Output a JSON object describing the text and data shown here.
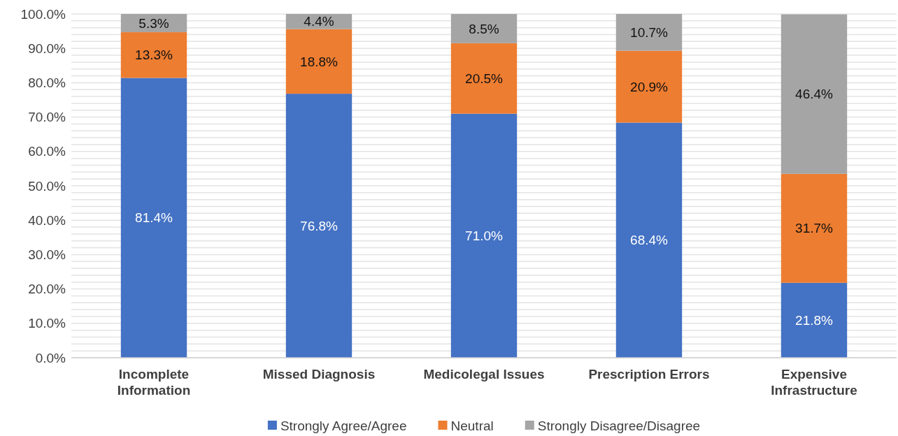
{
  "chart_data": {
    "type": "bar",
    "stacked": true,
    "categories": [
      "Incomplete Information",
      "Missed Diagnosis",
      "Medicolegal Issues",
      "Prescription Errors",
      "Expensive Infrastructure"
    ],
    "series": [
      {
        "name": "Strongly Agree/Agree",
        "color": "#4472c4",
        "values": [
          81.4,
          76.8,
          71.0,
          68.4,
          21.8
        ],
        "value_labels": [
          "81.4%",
          "76.8%",
          "71.0%",
          "68.4%",
          "21.8%"
        ]
      },
      {
        "name": "Neutral",
        "color": "#ed7d31",
        "values": [
          13.3,
          18.8,
          20.5,
          20.9,
          31.7
        ],
        "value_labels": [
          "13.3%",
          "18.8%",
          "20.5%",
          "20.9%",
          "31.7%"
        ]
      },
      {
        "name": "Strongly Disagree/Disagree",
        "color": "#a5a5a5",
        "values": [
          5.3,
          4.4,
          8.5,
          10.7,
          46.4
        ],
        "value_labels": [
          "5.3%",
          "4.4%",
          "8.5%",
          "10.7%",
          "46.4%"
        ]
      }
    ],
    "ylim": [
      0,
      100
    ],
    "yticks": [
      {
        "value": 0,
        "label": "0.0%"
      },
      {
        "value": 2,
        "label": null
      },
      {
        "value": 4,
        "label": null
      },
      {
        "value": 6,
        "label": null
      },
      {
        "value": 8,
        "label": null
      },
      {
        "value": 10,
        "label": "10.0%"
      },
      {
        "value": 12,
        "label": null
      },
      {
        "value": 14,
        "label": null
      },
      {
        "value": 16,
        "label": null
      },
      {
        "value": 18,
        "label": null
      },
      {
        "value": 20,
        "label": "20.0%"
      },
      {
        "value": 22,
        "label": null
      },
      {
        "value": 24,
        "label": null
      },
      {
        "value": 26,
        "label": null
      },
      {
        "value": 28,
        "label": null
      },
      {
        "value": 30,
        "label": "30.0%"
      },
      {
        "value": 32,
        "label": null
      },
      {
        "value": 34,
        "label": null
      },
      {
        "value": 36,
        "label": null
      },
      {
        "value": 38,
        "label": null
      },
      {
        "value": 40,
        "label": "40.0%"
      },
      {
        "value": 42,
        "label": null
      },
      {
        "value": 44,
        "label": null
      },
      {
        "value": 46,
        "label": null
      },
      {
        "value": 48,
        "label": null
      },
      {
        "value": 50,
        "label": "50.0%"
      },
      {
        "value": 52,
        "label": null
      },
      {
        "value": 54,
        "label": null
      },
      {
        "value": 56,
        "label": null
      },
      {
        "value": 58,
        "label": null
      },
      {
        "value": 60,
        "label": "60.0%"
      },
      {
        "value": 62,
        "label": null
      },
      {
        "value": 64,
        "label": null
      },
      {
        "value": 66,
        "label": null
      },
      {
        "value": 68,
        "label": null
      },
      {
        "value": 70,
        "label": "70.0%"
      },
      {
        "value": 72,
        "label": null
      },
      {
        "value": 74,
        "label": null
      },
      {
        "value": 76,
        "label": null
      },
      {
        "value": 78,
        "label": null
      },
      {
        "value": 80,
        "label": "80.0%"
      },
      {
        "value": 82,
        "label": null
      },
      {
        "value": 84,
        "label": null
      },
      {
        "value": 86,
        "label": null
      },
      {
        "value": 88,
        "label": null
      },
      {
        "value": 90,
        "label": "90.0%"
      },
      {
        "value": 92,
        "label": null
      },
      {
        "value": 94,
        "label": null
      },
      {
        "value": 96,
        "label": null
      },
      {
        "value": 98,
        "label": null
      },
      {
        "value": 100,
        "label": "100.0%"
      }
    ],
    "grid": "y",
    "legend": "bottom"
  }
}
